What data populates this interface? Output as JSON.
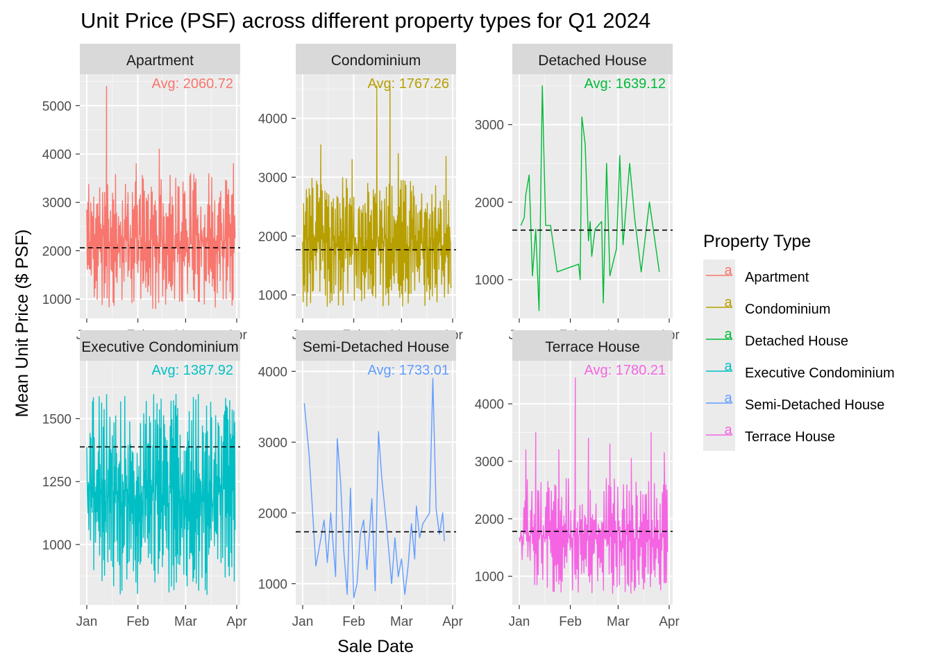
{
  "chart_data": {
    "type": "line",
    "title": "Unit Price (PSF) across different property types for Q1 2024",
    "xlabel": "Sale Date",
    "ylabel": "Mean Unit Price ($ PSF)",
    "x_ticks": [
      "Jan",
      "Feb",
      "Mar",
      "Apr"
    ],
    "x_range": [
      "2024-01-01",
      "2024-04-01"
    ],
    "legend": {
      "title": "Property Type",
      "key_glyph": "a",
      "entries": [
        "Apartment",
        "Condominium",
        "Detached House",
        "Executive Condominium",
        "Semi-Detached House",
        "Terrace House"
      ]
    },
    "panels": [
      {
        "name": "Apartment",
        "color": "#F8766D",
        "avg": 2060.72,
        "avg_label": "Avg: 2060.72",
        "ylim": [
          600,
          5650
        ],
        "yticks": [
          1000,
          2000,
          3000,
          4000,
          5000
        ],
        "yticks_label": [
          "1000",
          "2000",
          "3000",
          "4000",
          "5000"
        ],
        "data_day_range": [
          0,
          90
        ],
        "value_min": 800,
        "value_max": 3600,
        "spikes": [
          [
            12,
            5400
          ],
          [
            25,
            3200
          ],
          [
            30,
            3800
          ],
          [
            44,
            4100
          ],
          [
            54,
            3500
          ],
          [
            63,
            3600
          ],
          [
            89,
            3800
          ]
        ],
        "seed": 11,
        "n_points": 300
      },
      {
        "name": "Condominium",
        "color": "#B79F00",
        "avg": 1767.26,
        "avg_label": "Avg: 1767.26",
        "ylim": [
          600,
          4750
        ],
        "yticks": [
          1000,
          2000,
          3000,
          4000
        ],
        "yticks_label": [
          "1000",
          "2000",
          "3000",
          "4000"
        ],
        "data_day_range": [
          0,
          90
        ],
        "value_min": 800,
        "value_max": 3000,
        "spikes": [
          [
            11,
            3550
          ],
          [
            30,
            3300
          ],
          [
            45,
            4550
          ],
          [
            53,
            4550
          ],
          [
            58,
            3400
          ],
          [
            87,
            3350
          ]
        ],
        "seed": 23,
        "n_points": 320
      },
      {
        "name": "Detached House",
        "color": "#00BA38",
        "avg": 1639.12,
        "avg_label": "Avg: 1639.12",
        "ylim": [
          500,
          3650
        ],
        "yticks": [
          1000,
          2000,
          3000
        ],
        "yticks_label": [
          "1000",
          "2000",
          "3000"
        ],
        "points": [
          [
            1,
            1700
          ],
          [
            3,
            1800
          ],
          [
            4,
            2100
          ],
          [
            6,
            2350
          ],
          [
            8,
            1050
          ],
          [
            10,
            1650
          ],
          [
            12,
            600
          ],
          [
            14,
            3500
          ],
          [
            16,
            1700
          ],
          [
            19,
            1700
          ],
          [
            23,
            1100
          ],
          [
            36,
            1200
          ],
          [
            37,
            1000
          ],
          [
            38,
            3100
          ],
          [
            40,
            2750
          ],
          [
            42,
            1500
          ],
          [
            43,
            1750
          ],
          [
            44,
            1300
          ],
          [
            46,
            1650
          ],
          [
            50,
            1750
          ],
          [
            51,
            700
          ],
          [
            53,
            2500
          ],
          [
            55,
            1050
          ],
          [
            59,
            1400
          ],
          [
            61,
            2600
          ],
          [
            63,
            1450
          ],
          [
            67,
            2500
          ],
          [
            70,
            1800
          ],
          [
            74,
            1100
          ],
          [
            79,
            2000
          ],
          [
            85,
            1100
          ]
        ]
      },
      {
        "name": "Executive Condominium",
        "color": "#00BFC4",
        "avg": 1387.92,
        "avg_label": "Avg: 1387.92",
        "ylim": [
          760,
          1730
        ],
        "yticks": [
          1000,
          1250,
          1500
        ],
        "yticks_label": [
          "1000",
          "1250",
          "1500"
        ],
        "data_day_range": [
          0,
          90
        ],
        "value_min": 800,
        "value_max": 1600,
        "spikes": [],
        "seed": 37,
        "n_points": 360
      },
      {
        "name": "Semi-Detached House",
        "color": "#619CFF",
        "avg": 1733.01,
        "avg_label": "Avg: 1733.01",
        "ylim": [
          700,
          4150
        ],
        "yticks": [
          1000,
          2000,
          3000,
          4000
        ],
        "yticks_label": [
          "1000",
          "2000",
          "3000",
          "4000"
        ],
        "points": [
          [
            1,
            3550
          ],
          [
            4,
            2800
          ],
          [
            8,
            1250
          ],
          [
            10,
            1500
          ],
          [
            13,
            1900
          ],
          [
            15,
            1300
          ],
          [
            17,
            2000
          ],
          [
            20,
            1100
          ],
          [
            21,
            3050
          ],
          [
            23,
            2450
          ],
          [
            25,
            1450
          ],
          [
            27,
            850
          ],
          [
            29,
            2350
          ],
          [
            31,
            800
          ],
          [
            33,
            1000
          ],
          [
            35,
            1700
          ],
          [
            37,
            1900
          ],
          [
            39,
            1200
          ],
          [
            42,
            2200
          ],
          [
            44,
            900
          ],
          [
            46,
            3150
          ],
          [
            48,
            2500
          ],
          [
            51,
            1800
          ],
          [
            54,
            1000
          ],
          [
            56,
            1650
          ],
          [
            58,
            1100
          ],
          [
            60,
            1350
          ],
          [
            62,
            850
          ],
          [
            64,
            1250
          ],
          [
            66,
            1850
          ],
          [
            68,
            1350
          ],
          [
            69,
            2100
          ],
          [
            71,
            1650
          ],
          [
            73,
            1850
          ],
          [
            77,
            2000
          ],
          [
            79,
            3900
          ],
          [
            81,
            2050
          ],
          [
            83,
            1700
          ],
          [
            85,
            2000
          ],
          [
            86,
            1600
          ]
        ]
      },
      {
        "name": "Terrace House",
        "color": "#F564E3",
        "avg": 1780.21,
        "avg_label": "Avg: 1780.21",
        "ylim": [
          500,
          4750
        ],
        "yticks": [
          1000,
          2000,
          3000,
          4000
        ],
        "yticks_label": [
          "1000",
          "2000",
          "3000",
          "4000"
        ],
        "data_day_range": [
          0,
          90
        ],
        "value_min": 700,
        "value_max": 2700,
        "spikes": [
          [
            4,
            3200
          ],
          [
            10,
            3500
          ],
          [
            24,
            3200
          ],
          [
            34,
            4450
          ],
          [
            42,
            3400
          ],
          [
            55,
            3300
          ],
          [
            68,
            3050
          ],
          [
            80,
            3500
          ],
          [
            88,
            3150
          ]
        ],
        "seed": 53,
        "n_points": 260
      }
    ]
  }
}
